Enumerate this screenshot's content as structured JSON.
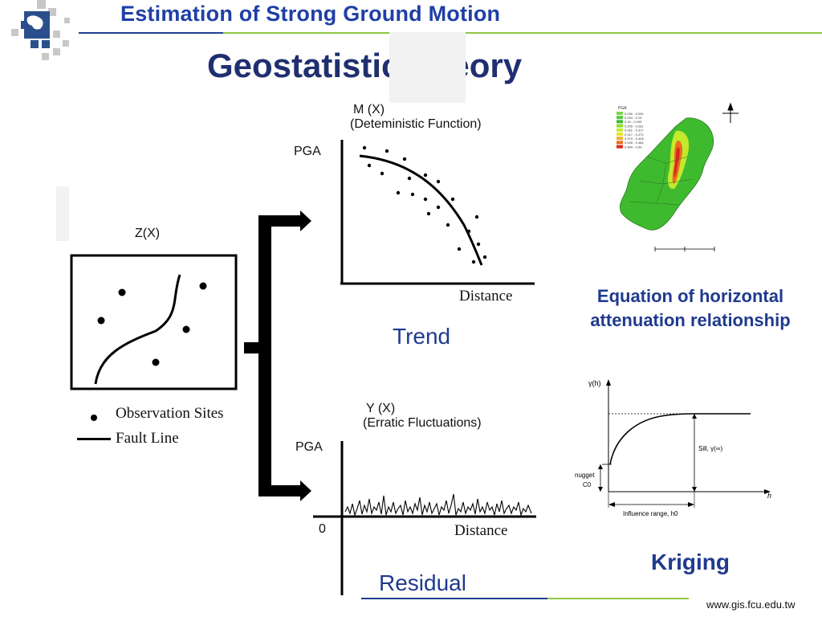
{
  "header": {
    "title": "Estimation of Strong Ground Motion",
    "subtitle": "Geostatistic Theory"
  },
  "colors": {
    "header_blue": "#1f3fa6",
    "title_navy": "#1f2f70",
    "accent_green": "#8cc63f",
    "caption_blue": "#1f3a8f"
  },
  "left_panel": {
    "label": "Z(X)",
    "legend_sites": "Observation Sites",
    "legend_fault": "Fault Line"
  },
  "trend_plot": {
    "title_line1": "M (X)",
    "title_line2": "(Deteministic Function)",
    "ylabel": "PGA",
    "xlabel": "Distance",
    "caption": "Trend"
  },
  "residual_plot": {
    "title_line1": "Y (X)",
    "title_line2": "(Erratic Fluctuations)",
    "ylabel": "PGA",
    "zero_label": "0",
    "xlabel": "Distance",
    "caption": "Residual"
  },
  "map": {
    "legend_title": "PGA",
    "legend_rows": [
      "0.030 - 0.094",
      "0.094 - 0.15",
      "0.15 - 0.205",
      "0.205 - 0.261",
      "0.261 - 0.317",
      "0.317 - 0.372",
      "0.373 - 0.428",
      "0.428 - 0.484",
      "0.484 - 0.54"
    ],
    "legend_colors": [
      "#7dd44a",
      "#57c93b",
      "#3fba2f",
      "#8fdc2c",
      "#c4e82a",
      "#e9e32a",
      "#f0b228",
      "#ec6a22",
      "#d9281c"
    ],
    "caption_line1": "Equation of horizontal",
    "caption_line2": "attenuation relationship"
  },
  "variogram": {
    "ylabel": "γ(h)",
    "xlabel": "h",
    "sill": "Sill, γ(∞)",
    "nugget_line1": "nugget",
    "nugget_line2": "C0",
    "range": "Influence range, h0",
    "caption": "Kriging"
  },
  "footer": {
    "url": "www.gis.fcu.edu.tw"
  }
}
